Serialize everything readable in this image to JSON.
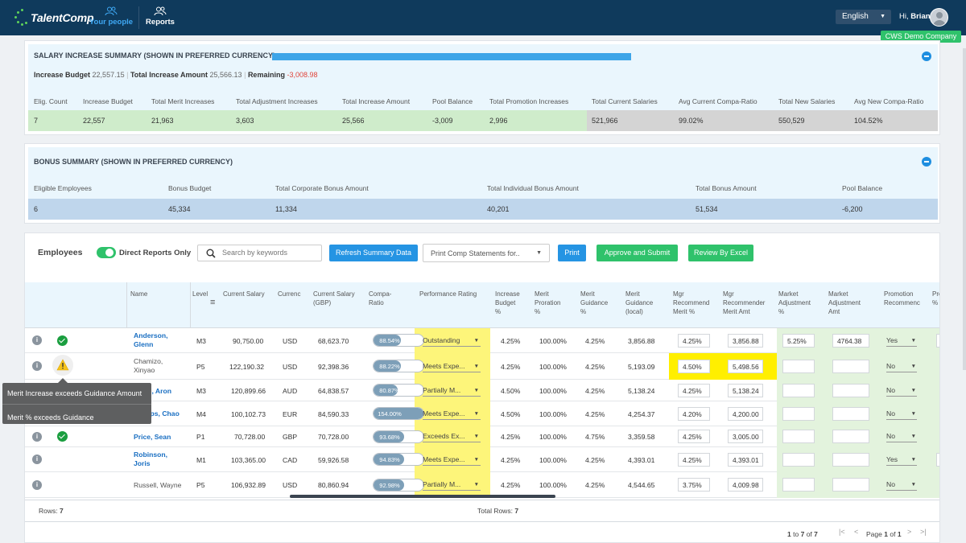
{
  "app": {
    "logo": "TalentComp",
    "nav": [
      {
        "label": "Your people",
        "icon": "people-icon",
        "active": true
      },
      {
        "label": "Reports",
        "icon": "reports-icon",
        "active": false
      }
    ],
    "language": "English",
    "greeting_prefix": "Hi, ",
    "user": "Brian",
    "company": "CWS Demo Company"
  },
  "salary_summary": {
    "title": "SALARY INCREASE SUMMARY (SHOWN IN PREFERRED CURRENCY)",
    "increase_budget_label": "Increase Budget",
    "increase_budget_value": "22,557.15",
    "total_increase_label": "Total Increase Amount",
    "total_increase_value": "25,566.13",
    "remaining_label": "Remaining",
    "remaining_value": "-3,008.98",
    "headers": [
      "Elig. Count",
      "Increase Budget",
      "Total Merit Increases",
      "Total Adjustment Increases",
      "Total Increase Amount",
      "Pool Balance",
      "Total Promotion Increases",
      "Total Current Salaries",
      "Avg Current Compa-Ratio",
      "Total New Salaries",
      "Avg New Compa-Ratio"
    ],
    "values": [
      "7",
      "22,557",
      "21,963",
      "3,603",
      "25,566",
      "-3,009",
      "2,996",
      "521,966",
      "99.02%",
      "550,529",
      "104.52%"
    ]
  },
  "bonus_summary": {
    "title": "BONUS SUMMARY (SHOWN IN PREFERRED CURRENCY)",
    "headers": [
      "Eligible Employees",
      "Bonus Budget",
      "Total Corporate Bonus Amount",
      "Total Individual Bonus Amount",
      "Total Bonus Amount",
      "Pool Balance"
    ],
    "values": [
      "6",
      "45,334",
      "11,334",
      "40,201",
      "51,534",
      "-6,200"
    ]
  },
  "employees": {
    "label": "Employees",
    "direct_reports_label": "Direct Reports Only",
    "search_placeholder": "Search by keywords",
    "refresh_label": "Refresh Summary Data",
    "print_select": "Print Comp Statements for..",
    "print_label": "Print",
    "approve_label": "Approve and Submit",
    "review_label": "Review By Excel",
    "columns": {
      "name": "Name",
      "level": "Level",
      "current_salary": "Current Salary",
      "currency": "Currenc",
      "current_salary_gbp_1": "Current Salary",
      "current_salary_gbp_2": "(GBP)",
      "compa_1": "Compa-",
      "compa_2": "Ratio",
      "perf": "Performance Rating",
      "inc_1": "Increase",
      "inc_2": "Budget",
      "inc_3": "%",
      "mp_1": "Merit",
      "mp_2": "Proration",
      "mp_3": "%",
      "mg_1": "Merit",
      "mg_2": "Guidance",
      "mg_3": "%",
      "mgl_1": "Merit",
      "mgl_2": "Guidance",
      "mgl_3": "(local)",
      "mrm_1": "Mgr",
      "mrm_2": "Recommend",
      "mrm_3": "Merit %",
      "mra_1": "Mgr",
      "mra_2": "Recommender",
      "mra_3": "Merit Amt",
      "ma_1": "Market",
      "ma_2": "Adjustment",
      "ma_3": "%",
      "maa_1": "Market",
      "maa_2": "Adjustment",
      "maa_3": "Amt",
      "pr_1": "Promotion",
      "pr_2": "Recommenc",
      "pr2_1": "Pro",
      "pr2_2": "%"
    },
    "rows": [
      {
        "name1": "Anderson,",
        "name2": "Glenn",
        "status": "ok",
        "level": "M3",
        "salary": "90,750.00",
        "currency": "USD",
        "gbp": "68,623.70",
        "compa": "88.54%",
        "compa_pct": 0.55,
        "perf": "Outstanding",
        "inc": "4.25%",
        "pro": "100.00%",
        "guid": "4.25%",
        "local": "3,856.88",
        "mrm": "4.25%",
        "mra": "3,856.88",
        "ma": "5.25%",
        "maa": "4764.38",
        "promo": "Yes"
      },
      {
        "name1": "Chamizo,",
        "name2": "Xinyao",
        "status": "warn",
        "level": "P5",
        "salary": "122,190.32",
        "currency": "USD",
        "gbp": "92,398.36",
        "compa": "88.22%",
        "compa_pct": 0.55,
        "perf": "Meets Expe...",
        "inc": "4.25%",
        "pro": "100.00%",
        "guid": "4.25%",
        "local": "5,193.09",
        "mrm": "4.50%",
        "mra": "5,498.56",
        "ma": "",
        "maa": "",
        "promo": "No"
      },
      {
        "name1": "Pikes, Aron",
        "name2": "",
        "status": "none",
        "level": "M3",
        "salary": "120,899.66",
        "currency": "AUD",
        "gbp": "64,838.57",
        "compa": "80.87%",
        "compa_pct": 0.48,
        "perf": "Partially M...",
        "inc": "4.50%",
        "pro": "100.00%",
        "guid": "4.25%",
        "local": "5,138.24",
        "mrm": "4.25%",
        "mra": "5,138.24",
        "ma": "",
        "maa": "",
        "promo": "No"
      },
      {
        "name1": "Phillips, Chao",
        "name2": "",
        "status": "none",
        "level": "M4",
        "salary": "100,102.73",
        "currency": "EUR",
        "gbp": "84,590.33",
        "compa": "154.00%",
        "compa_pct": 1.0,
        "perf": "Meets Expe...",
        "inc": "4.50%",
        "pro": "100.00%",
        "guid": "4.25%",
        "local": "4,254.37",
        "mrm": "4.20%",
        "mra": "4,200.00",
        "ma": "",
        "maa": "",
        "promo": "No"
      },
      {
        "name1": "Price, Sean",
        "name2": "",
        "status": "ok",
        "level": "P1",
        "salary": "70,728.00",
        "currency": "GBP",
        "gbp": "70,728.00",
        "compa": "93.68%",
        "compa_pct": 0.62,
        "perf": "Exceeds Ex...",
        "inc": "4.25%",
        "pro": "100.00%",
        "guid": "4.75%",
        "local": "3,359.58",
        "mrm": "4.25%",
        "mra": "3,005.00",
        "ma": "",
        "maa": "",
        "promo": "No"
      },
      {
        "name1": "Robinson,",
        "name2": "Joris",
        "status": "none",
        "level": "M1",
        "salary": "103,365.00",
        "currency": "CAD",
        "gbp": "59,926.58",
        "compa": "94.83%",
        "compa_pct": 0.62,
        "perf": "Meets Expe...",
        "inc": "4.25%",
        "pro": "100.00%",
        "guid": "4.25%",
        "local": "4,393.01",
        "mrm": "4.25%",
        "mra": "4,393.01",
        "ma": "",
        "maa": "",
        "promo": "Yes"
      },
      {
        "name1": "Russell, Wayne",
        "name2": "",
        "status": "none",
        "level": "P5",
        "salary": "106,932.89",
        "currency": "USD",
        "gbp": "80,860.94",
        "compa": "92.98%",
        "compa_pct": 0.62,
        "perf": "Partially M...",
        "inc": "4.25%",
        "pro": "100.00%",
        "guid": "4.25%",
        "local": "4,544.65",
        "mrm": "3.75%",
        "mra": "4,009.98",
        "ma": "",
        "maa": "",
        "promo": "No"
      }
    ],
    "rows_label": "Rows:",
    "rows_count": "7",
    "total_rows_label": "Total Rows:",
    "total_rows_count": "7",
    "pager_range_from": "1",
    "pager_to": "to",
    "pager_range_to": "7",
    "pager_of": "of",
    "pager_total": "7",
    "page_label": "Page",
    "page_current": "1",
    "page_of": "of",
    "page_total": "1"
  },
  "tooltip": {
    "line1": "Merit Increase exceeds Guidance Amount",
    "line2": "Merit % exceeds Guidance"
  },
  "colors": {
    "topbar": "#0f3a5c",
    "accent_green": "#2fc26b",
    "accent_blue": "#2594e3",
    "negative": "#e0453a",
    "highlight_yellow": "#fdf57a",
    "warning_yellow": "#ffef00"
  }
}
